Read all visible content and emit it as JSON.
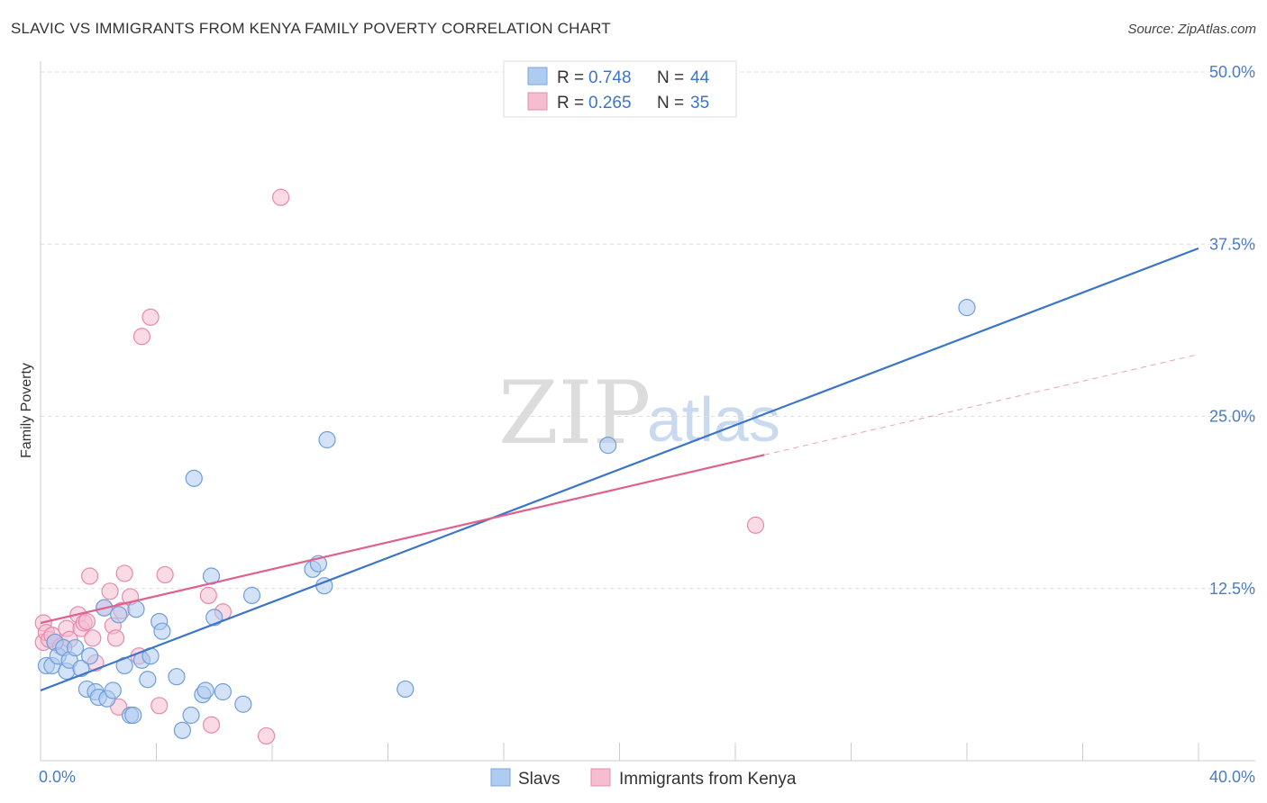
{
  "title": "SLAVIC VS IMMIGRANTS FROM KENYA FAMILY POVERTY CORRELATION CHART",
  "source": "Source: ZipAtlas.com",
  "watermark": {
    "part1": "ZIP",
    "part2": "atlas"
  },
  "colors": {
    "slavs": "#3b75c9",
    "slavs_fill": "#aecbf0",
    "kenya": "#e0608e",
    "kenya_fill": "#f6bcd0",
    "grid": "#dddddd",
    "tick_text": "#4a7dc4"
  },
  "chart_data": {
    "type": "scatter",
    "title": "SLAVIC VS IMMIGRANTS FROM KENYA FAMILY POVERTY CORRELATION CHART",
    "xlabel": "",
    "ylabel": "Family Poverty",
    "xlim": [
      0,
      40
    ],
    "ylim": [
      0,
      50
    ],
    "x_tick_labels": [
      {
        "value": 0,
        "label": "0.0%"
      },
      {
        "value": 40,
        "label": "40.0%"
      }
    ],
    "y_tick_labels": [
      {
        "value": 12.5,
        "label": "12.5%"
      },
      {
        "value": 25,
        "label": "25.0%"
      },
      {
        "value": 37.5,
        "label": "37.5%"
      },
      {
        "value": 50,
        "label": "50.0%"
      }
    ],
    "legend_box": {
      "rows": [
        {
          "r_label": "R =",
          "r_value": "0.748",
          "n_label": "N =",
          "n_value": "44"
        },
        {
          "r_label": "R =",
          "r_value": "0.265",
          "n_label": "N =",
          "n_value": "35"
        }
      ]
    },
    "series": [
      {
        "name": "Slavs",
        "color": "#3b75c9",
        "points": [
          [
            0.2,
            6.9
          ],
          [
            0.4,
            6.9
          ],
          [
            0.5,
            8.6
          ],
          [
            0.6,
            7.6
          ],
          [
            0.8,
            8.2
          ],
          [
            0.9,
            6.5
          ],
          [
            1.0,
            7.3
          ],
          [
            1.2,
            8.2
          ],
          [
            1.4,
            6.7
          ],
          [
            1.6,
            5.2
          ],
          [
            1.7,
            7.6
          ],
          [
            1.9,
            5.0
          ],
          [
            2.0,
            4.6
          ],
          [
            2.3,
            4.5
          ],
          [
            2.2,
            11.1
          ],
          [
            2.5,
            5.1
          ],
          [
            2.7,
            10.6
          ],
          [
            2.9,
            6.9
          ],
          [
            3.1,
            3.3
          ],
          [
            3.2,
            3.3
          ],
          [
            3.3,
            11.0
          ],
          [
            3.5,
            7.3
          ],
          [
            3.7,
            5.9
          ],
          [
            3.8,
            7.6
          ],
          [
            4.1,
            10.1
          ],
          [
            4.2,
            9.4
          ],
          [
            4.7,
            6.1
          ],
          [
            4.9,
            2.2
          ],
          [
            5.2,
            3.3
          ],
          [
            5.3,
            20.5
          ],
          [
            5.6,
            4.8
          ],
          [
            5.7,
            5.1
          ],
          [
            5.9,
            13.4
          ],
          [
            6.0,
            10.4
          ],
          [
            6.3,
            5.0
          ],
          [
            7.0,
            4.1
          ],
          [
            7.3,
            12.0
          ],
          [
            9.4,
            13.9
          ],
          [
            9.6,
            14.3
          ],
          [
            9.8,
            12.7
          ],
          [
            9.9,
            23.3
          ],
          [
            12.6,
            5.2
          ],
          [
            19.6,
            22.9
          ],
          [
            32.0,
            32.9
          ]
        ]
      },
      {
        "name": "Immigrants from Kenya",
        "color": "#e0608e",
        "points": [
          [
            0.1,
            8.6
          ],
          [
            0.1,
            10.0
          ],
          [
            0.2,
            9.3
          ],
          [
            0.3,
            8.8
          ],
          [
            0.4,
            9.1
          ],
          [
            0.5,
            8.6
          ],
          [
            0.7,
            8.3
          ],
          [
            0.9,
            9.6
          ],
          [
            1.0,
            8.8
          ],
          [
            1.3,
            10.6
          ],
          [
            1.4,
            9.6
          ],
          [
            1.5,
            10.0
          ],
          [
            1.6,
            10.1
          ],
          [
            1.7,
            13.4
          ],
          [
            1.8,
            8.9
          ],
          [
            1.9,
            7.1
          ],
          [
            2.2,
            11.1
          ],
          [
            2.4,
            12.3
          ],
          [
            2.5,
            9.8
          ],
          [
            2.6,
            8.9
          ],
          [
            2.7,
            3.9
          ],
          [
            2.8,
            10.9
          ],
          [
            2.9,
            13.6
          ],
          [
            3.1,
            11.9
          ],
          [
            3.4,
            7.6
          ],
          [
            3.5,
            30.8
          ],
          [
            3.8,
            32.2
          ],
          [
            4.1,
            4.0
          ],
          [
            4.3,
            13.5
          ],
          [
            5.8,
            12.0
          ],
          [
            5.9,
            2.6
          ],
          [
            6.3,
            10.8
          ],
          [
            7.8,
            1.8
          ],
          [
            8.3,
            40.9
          ],
          [
            24.7,
            17.1
          ]
        ]
      }
    ],
    "trend_lines": [
      {
        "series": "Slavs",
        "solid": [
          [
            0,
            5.1
          ],
          [
            40,
            37.2
          ]
        ]
      },
      {
        "series": "Immigrants from Kenya",
        "solid": [
          [
            0,
            10.0
          ],
          [
            25,
            22.2
          ]
        ],
        "dashed": [
          [
            25,
            22.2
          ],
          [
            40,
            29.5
          ]
        ]
      }
    ]
  }
}
